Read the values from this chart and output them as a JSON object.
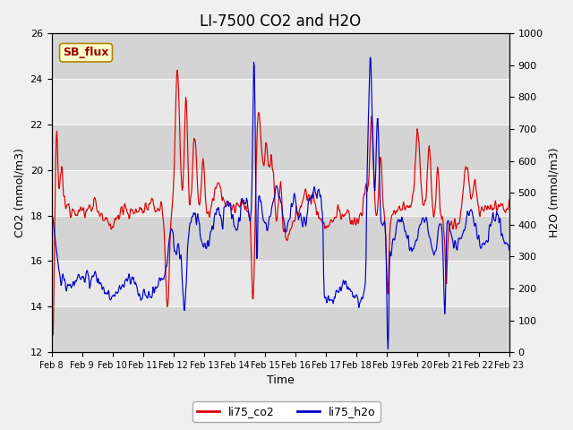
{
  "title": "LI-7500 CO2 and H2O",
  "xlabel": "Time",
  "ylabel_left": "CO2 (mmol/m3)",
  "ylabel_right": "H2O (mmol/m3)",
  "ylim_left": [
    12,
    26
  ],
  "ylim_right": [
    0,
    1000
  ],
  "yticks_left": [
    12,
    14,
    16,
    18,
    20,
    22,
    24,
    26
  ],
  "yticks_right": [
    0,
    100,
    200,
    300,
    400,
    500,
    600,
    700,
    800,
    900,
    1000
  ],
  "xtick_labels": [
    "Feb 8",
    "Feb 9",
    "Feb 10",
    "Feb 11",
    "Feb 12",
    "Feb 13",
    "Feb 14",
    "Feb 15",
    "Feb 16",
    "Feb 17",
    "Feb 18",
    "Feb 19",
    "Feb 20",
    "Feb 21",
    "Feb 22",
    "Feb 23"
  ],
  "color_co2": "#dd0000",
  "color_h2o": "#0000cc",
  "legend_label_co2": "li75_co2",
  "legend_label_h2o": "li75_h2o",
  "annotation_text": "SB_flux",
  "title_fontsize": 12,
  "axis_label_fontsize": 9,
  "tick_fontsize": 8,
  "band_light": "#e8e8e8",
  "band_dark": "#d4d4d4",
  "fig_facecolor": "#f0f0f0"
}
